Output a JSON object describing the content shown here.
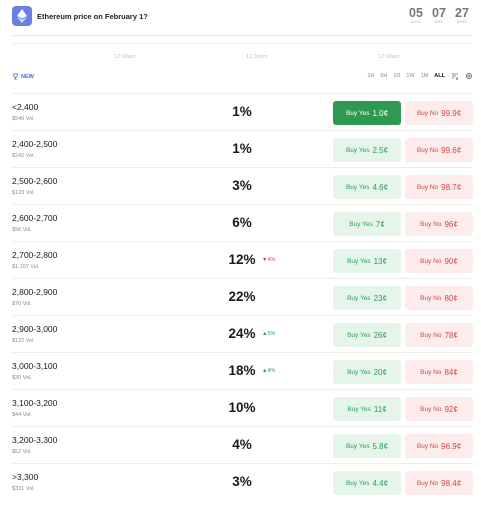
{
  "header": {
    "title": "Ethereum price on February 1?",
    "countdown": [
      {
        "value": "05",
        "label": "DAYS"
      },
      {
        "value": "07",
        "label": "HRS"
      },
      {
        "value": "27",
        "label": "MINS"
      }
    ]
  },
  "chart": {
    "time_labels": [
      "12:00am",
      "12:00pm",
      "12:00am"
    ]
  },
  "filter": {
    "new_label": "NEW"
  },
  "tabs": [
    {
      "label": "1H",
      "active": false
    },
    {
      "label": "6H",
      "active": false
    },
    {
      "label": "1D",
      "active": false
    },
    {
      "label": "1W",
      "active": false
    },
    {
      "label": "1M",
      "active": false
    },
    {
      "label": "ALL",
      "active": true
    }
  ],
  "buttons": {
    "yes_label": "Buy Yes",
    "no_label": "Buy No"
  },
  "colors": {
    "accent_green": "#2e9a4f",
    "yes_text": "#27a05a",
    "no_text": "#d64545",
    "logo": "#6b7fe3"
  },
  "rows": [
    {
      "name": "<2,400",
      "volume": "$549 Vol.",
      "percent": "1%",
      "change": "",
      "change_dir": "",
      "yes_price": "1.0¢",
      "no_price": "99.9¢",
      "yes_selected": true
    },
    {
      "name": "2,400-2,500",
      "volume": "$242 Vol.",
      "percent": "1%",
      "change": "",
      "change_dir": "",
      "yes_price": "2.5¢",
      "no_price": "99.6¢",
      "yes_selected": false
    },
    {
      "name": "2,500-2,600",
      "volume": "$123 Vol.",
      "percent": "3%",
      "change": "",
      "change_dir": "",
      "yes_price": "4.6¢",
      "no_price": "98.7¢",
      "yes_selected": false
    },
    {
      "name": "2,600-2,700",
      "volume": "$56 Vol.",
      "percent": "6%",
      "change": "",
      "change_dir": "",
      "yes_price": "7¢",
      "no_price": "96¢",
      "yes_selected": false
    },
    {
      "name": "2,700-2,800",
      "volume": "$1,107 Vol.",
      "percent": "12%",
      "change": "▼4%",
      "change_dir": "down",
      "yes_price": "13¢",
      "no_price": "90¢",
      "yes_selected": false
    },
    {
      "name": "2,800-2,900",
      "volume": "$70 Vol.",
      "percent": "22%",
      "change": "",
      "change_dir": "",
      "yes_price": "23¢",
      "no_price": "80¢",
      "yes_selected": false
    },
    {
      "name": "2,900-3,000",
      "volume": "$122 Vol.",
      "percent": "24%",
      "change": "▲5%",
      "change_dir": "up",
      "yes_price": "26¢",
      "no_price": "78¢",
      "yes_selected": false
    },
    {
      "name": "3,000-3,100",
      "volume": "$30 Vol.",
      "percent": "18%",
      "change": "▲4%",
      "change_dir": "up",
      "yes_price": "20¢",
      "no_price": "84¢",
      "yes_selected": false
    },
    {
      "name": "3,100-3,200",
      "volume": "$44 Vol.",
      "percent": "10%",
      "change": "",
      "change_dir": "",
      "yes_price": "11¢",
      "no_price": "92¢",
      "yes_selected": false
    },
    {
      "name": "3,200-3,300",
      "volume": "$52 Vol.",
      "percent": "4%",
      "change": "",
      "change_dir": "",
      "yes_price": "5.8¢",
      "no_price": "96.9¢",
      "yes_selected": false
    },
    {
      "name": ">3,300",
      "volume": "$331 Vol.",
      "percent": "3%",
      "change": "",
      "change_dir": "",
      "yes_price": "4.4¢",
      "no_price": "98.4¢",
      "yes_selected": false
    }
  ]
}
